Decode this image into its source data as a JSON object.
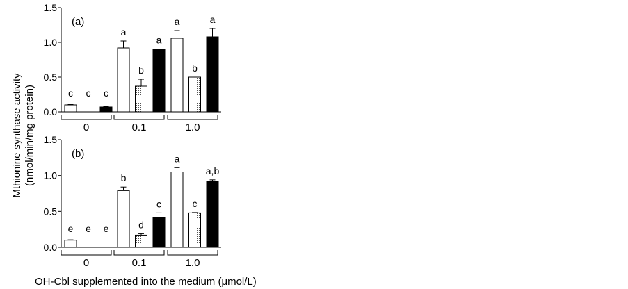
{
  "chart_data": [
    {
      "type": "bar",
      "panel_label": "(a)",
      "categories": [
        "0",
        "0.1",
        "1.0"
      ],
      "ylim": [
        0,
        1.5
      ],
      "yticks": [
        "0.0",
        "0.5",
        "1.0",
        "1.5"
      ],
      "series": [
        {
          "name": "white",
          "fill": "#ffffff",
          "values": [
            0.1,
            0.92,
            1.06
          ],
          "errors": [
            0.01,
            0.1,
            0.11
          ],
          "letters": [
            "c",
            "a",
            "a"
          ]
        },
        {
          "name": "dotted",
          "fill": "dotted",
          "values": [
            0.0,
            0.37,
            0.5
          ],
          "errors": [
            0.0,
            0.1,
            0.0
          ],
          "letters": [
            "c",
            "b",
            "b"
          ]
        },
        {
          "name": "black",
          "fill": "#000000",
          "values": [
            0.07,
            0.9,
            1.08
          ],
          "errors": [
            0.005,
            0.005,
            0.12
          ],
          "letters": [
            "c",
            "a",
            "a"
          ]
        }
      ]
    },
    {
      "type": "bar",
      "panel_label": "(b)",
      "categories": [
        "0",
        "0.1",
        "1.0"
      ],
      "ylim": [
        0,
        1.5
      ],
      "yticks": [
        "0.0",
        "0.5",
        "1.0",
        "1.5"
      ],
      "series": [
        {
          "name": "white",
          "fill": "#ffffff",
          "values": [
            0.1,
            0.79,
            1.05
          ],
          "errors": [
            0.005,
            0.05,
            0.06
          ],
          "letters": [
            "e",
            "b",
            "a"
          ]
        },
        {
          "name": "dotted",
          "fill": "dotted",
          "values": [
            0.0,
            0.17,
            0.48
          ],
          "errors": [
            0.0,
            0.02,
            0.005
          ],
          "letters": [
            "e",
            "d",
            "c"
          ]
        },
        {
          "name": "black",
          "fill": "#000000",
          "values": [
            0.0,
            0.42,
            0.92
          ],
          "errors": [
            0.0,
            0.06,
            0.02
          ],
          "letters": [
            "e",
            "c",
            "a,b"
          ]
        }
      ]
    }
  ],
  "ylabel_line1": "Mthionine synthase activity",
  "ylabel_line2": "(nmol/min/mg protein)",
  "xlabel": "OH-Cbl supplemented into the medium (μmol/L)"
}
